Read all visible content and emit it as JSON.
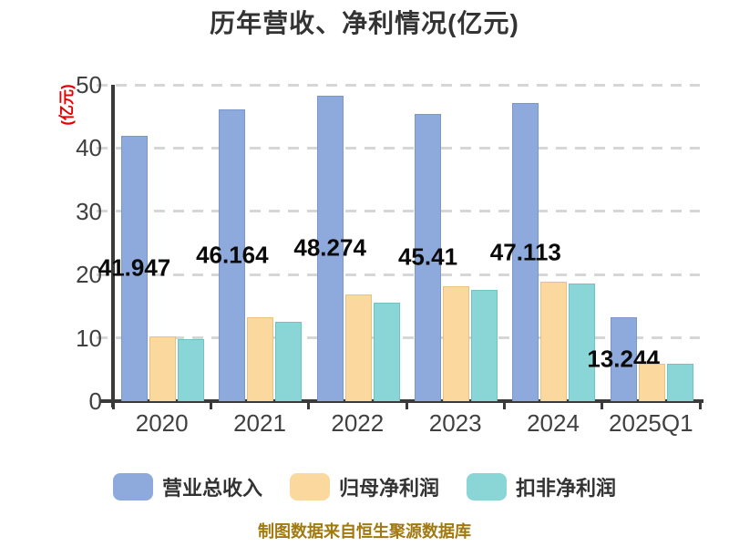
{
  "title": "历年营收、净利情况(亿元)",
  "y_axis_label": "(亿元)",
  "footer": "制图数据来自恒生聚源数据库",
  "colors": {
    "axis": "#3a3a3a",
    "grid": "#d6d6d6",
    "title_text": "#333333",
    "tick_text": "#404040",
    "ylabel_text": "#e60000",
    "footer_text": "#a1790e",
    "data_label_text": "#0a0a0a",
    "revenue_fill": "#8EA9DB",
    "net_profit_fill": "#FBD89D",
    "non_gaap_fill": "#8AD5D6"
  },
  "chart_data": {
    "type": "bar",
    "title": "历年营收、净利情况(亿元)",
    "ylabel": "(亿元)",
    "xlabel": "",
    "categories": [
      "2020",
      "2021",
      "2022",
      "2023",
      "2024",
      "2025Q1"
    ],
    "series": [
      {
        "name": "营业总收入",
        "color": "#8EA9DB",
        "border": "#7B97C9",
        "values": [
          41.947,
          46.164,
          48.274,
          45.41,
          47.113,
          13.244
        ],
        "labels": [
          "41.947",
          "46.164",
          "48.274",
          "45.41",
          "47.113",
          "13.244"
        ]
      },
      {
        "name": "归母净利润",
        "color": "#FBD89D",
        "border": "#E8C37E",
        "values": [
          10.2,
          13.3,
          16.9,
          18.2,
          18.9,
          5.9
        ]
      },
      {
        "name": "扣非净利润",
        "color": "#8AD5D6",
        "border": "#6FC3C5",
        "values": [
          9.8,
          12.5,
          15.6,
          17.6,
          18.6,
          5.9
        ]
      }
    ],
    "ylim": [
      0,
      50
    ],
    "yticks": [
      0,
      10,
      20,
      30,
      40,
      50
    ],
    "grid": "dashed-horizontal",
    "legend_position": "bottom",
    "data_labels_series": "营业总收入"
  },
  "legend": [
    {
      "label": "营业总收入",
      "color": "#8EA9DB"
    },
    {
      "label": "归母净利润",
      "color": "#FBD89D"
    },
    {
      "label": "扣非净利润",
      "color": "#8AD5D6"
    }
  ]
}
